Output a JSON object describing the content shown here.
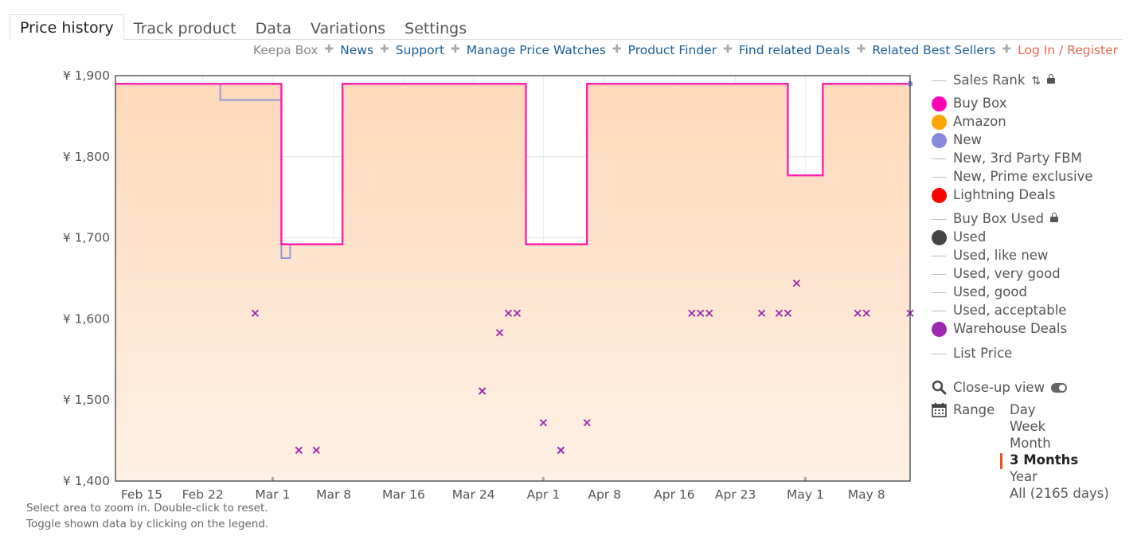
{
  "tabs": [
    "Price history",
    "Track product",
    "Data",
    "Variations",
    "Settings"
  ],
  "links": {
    "keepa_box": "Keepa Box",
    "items": [
      "News",
      "Support",
      "Manage Price Watches",
      "Product Finder",
      "Find related Deals",
      "Related Best Sellers"
    ],
    "login": "Log In / Register"
  },
  "hints": [
    "Select area to zoom in. Double-click to reset.",
    "Toggle shown data by clicking on the legend."
  ],
  "legend": {
    "sales_rank": "Sales Rank",
    "items": [
      {
        "label": "Buy Box",
        "color": "#ff00b4"
      },
      {
        "label": "Amazon",
        "color": "#ffa500"
      },
      {
        "label": "New",
        "color": "#8888dd"
      },
      {
        "label": "New, 3rd Party FBM",
        "color": ""
      },
      {
        "label": "New, Prime exclusive",
        "color": ""
      },
      {
        "label": "Lightning Deals",
        "color": "#ff0000"
      },
      {
        "label": "Buy Box Used",
        "color": ""
      },
      {
        "label": "Used",
        "color": "#444444"
      },
      {
        "label": "Used, like new",
        "color": ""
      },
      {
        "label": "Used, very good",
        "color": ""
      },
      {
        "label": "Used, good",
        "color": ""
      },
      {
        "label": "Used, acceptable",
        "color": ""
      },
      {
        "label": "Warehouse Deals",
        "color": "#9c27b0"
      },
      {
        "label": "List Price",
        "color": ""
      }
    ],
    "closeup": "Close-up view",
    "range_label": "Range",
    "range_options": [
      "Day",
      "Week",
      "Month",
      "3 Months",
      "Year",
      "All (2165 days)"
    ],
    "range_selected": "3 Months"
  },
  "chart_data": {
    "type": "line",
    "xlabel": "",
    "ylabel": "",
    "x_ticks": [
      "Feb 15",
      "Feb 22",
      "Mar 1",
      "Mar 8",
      "Mar 16",
      "Mar 24",
      "Apr 1",
      "Apr 8",
      "Apr 16",
      "Apr 23",
      "May 1",
      "May 8"
    ],
    "y_ticks": [
      "¥ 1,900",
      "¥ 1,800",
      "¥ 1,700",
      "¥ 1,600",
      "¥ 1,500",
      "¥ 1,400"
    ],
    "ylim": [
      1400,
      1900
    ],
    "xlim": [
      "Feb 12",
      "May 13"
    ],
    "series": [
      {
        "name": "Buy Box",
        "color": "#ff1fb0",
        "step": true,
        "points": [
          [
            "Feb 12",
            1890
          ],
          [
            "Mar 2",
            1692
          ],
          [
            "Mar 9",
            1890
          ],
          [
            "Mar 30",
            1692
          ],
          [
            "Apr 6",
            1890
          ],
          [
            "Apr 29",
            1777
          ],
          [
            "May 3",
            1890
          ],
          [
            "May 13",
            1890
          ]
        ]
      },
      {
        "name": "New",
        "color": "#8a93dd",
        "step": true,
        "points": [
          [
            "Feb 12",
            1890
          ],
          [
            "Feb 24",
            1870
          ],
          [
            "Mar 2",
            1675
          ],
          [
            "Mar 3",
            1692
          ]
        ]
      },
      {
        "name": "Warehouse Deals",
        "color": "#9c27b0",
        "markers": true,
        "points": [
          [
            "Feb 28",
            1607
          ],
          [
            "Mar 4",
            1438
          ],
          [
            "Mar 6",
            1438
          ],
          [
            "Mar 25",
            1511
          ],
          [
            "Mar 25",
            1511
          ],
          [
            "Mar 27",
            1583
          ],
          [
            "Mar 28",
            1607
          ],
          [
            "Mar 29",
            1607
          ],
          [
            "Apr 1",
            1472
          ],
          [
            "Apr 3",
            1438
          ],
          [
            "Apr 3",
            1438
          ],
          [
            "Apr 6",
            1472
          ],
          [
            "Apr 18",
            1607
          ],
          [
            "Apr 19",
            1607
          ],
          [
            "Apr 20",
            1607
          ],
          [
            "Apr 26",
            1607
          ],
          [
            "Apr 28",
            1607
          ],
          [
            "Apr 29",
            1607
          ],
          [
            "Apr 30",
            1644
          ],
          [
            "May 7",
            1607
          ],
          [
            "May 8",
            1607
          ],
          [
            "May 13",
            1607
          ]
        ]
      }
    ],
    "grid": true
  }
}
